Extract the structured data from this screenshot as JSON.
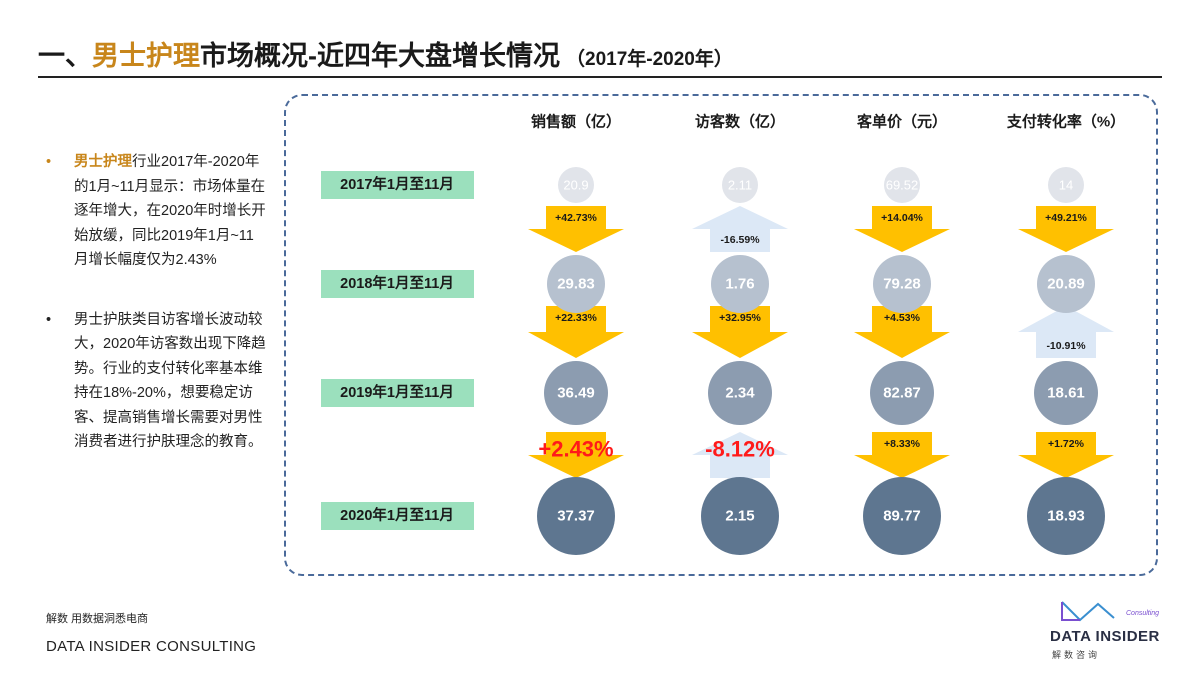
{
  "title": {
    "prefix": "一、",
    "accent": "男士护理",
    "main": "市场概况-近四年大盘增长情况",
    "range": "（2017年-2020年）"
  },
  "bullets": [
    {
      "marker": "•",
      "highlight": "男士护理",
      "text": "行业2017年-2020年的1月~11月显示：市场体量在逐年增大，在2020年时增长开始放缓，同比2019年1月~11月增长幅度仅为2.43%"
    },
    {
      "marker": "•",
      "highlight": "",
      "text": "男士护肤类目访客增长波动较大，2020年访客数出现下降趋势。行业的支付转化率基本维持在18%-20%，想要稳定访客、提高销售增长需要对男性消费者进行护肤理念的教育。"
    }
  ],
  "footer": {
    "slogan": "解数 用数据洞悉电商",
    "company": "DATA INSIDER CONSULTING"
  },
  "logo": {
    "consulting": "Consulting",
    "name": "DATA INSIDER",
    "cn": "解数咨询"
  },
  "colors": {
    "accent": "#c8861b",
    "rowLabelBg": "#9be0bd",
    "arrowUp": "#ffc000",
    "arrowDown": "#dce8f6",
    "circle2017": "#e1e4ea",
    "circle2018": "#b6c1cf",
    "circle2019": "#8c9cb0",
    "circle2020": "#5e7690",
    "highlightRed": "#ff1a1a"
  },
  "chart_data": {
    "type": "table",
    "title": "男士护理市场概况-近四年大盘增长情况",
    "columns": [
      "销售额（亿）",
      "访客数（亿）",
      "客单价（元）",
      "支付转化率（%）"
    ],
    "rows": [
      "2017年1月至11月",
      "2018年1月至11月",
      "2019年1月至11月",
      "2020年1月至11月"
    ],
    "values": [
      [
        "20.9",
        "2.11",
        "69.52",
        "14"
      ],
      [
        "29.83",
        "1.76",
        "79.28",
        "20.89"
      ],
      [
        "36.49",
        "2.34",
        "82.87",
        "18.61"
      ],
      [
        "37.37",
        "2.15",
        "89.77",
        "18.93"
      ]
    ],
    "changes": [
      [
        "+42.73%",
        "-16.59%",
        "+14.04%",
        "+49.21%"
      ],
      [
        "+22.33%",
        "+32.95%",
        "+4.53%",
        "-10.91%"
      ],
      [
        "+2.43%",
        "-8.12%",
        "+8.33%",
        "+1.72%"
      ]
    ],
    "highlighted_changes": [
      "+2.43%",
      "-8.12%"
    ]
  }
}
